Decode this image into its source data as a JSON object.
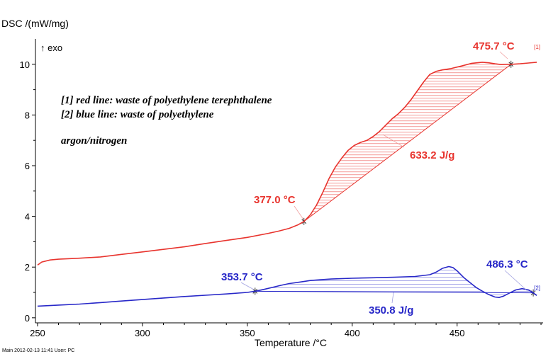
{
  "chart_data": {
    "type": "line",
    "ylabel": "DSC /(mW/mg)",
    "ylabel_note": "↑ exo",
    "xlabel": "Temperature /°C",
    "xlim": [
      249,
      491
    ],
    "ylim": [
      -0.2,
      11
    ],
    "xticks": [
      250,
      300,
      350,
      400,
      450
    ],
    "yticks": [
      0,
      2,
      4,
      6,
      8,
      10
    ],
    "grid": false,
    "legend_text": [
      "[1] red line: waste of polyethylene terephthalene",
      "[2] blue line: waste of polyethylene",
      "argon/nitrogen"
    ],
    "series": [
      {
        "tag": "[1]",
        "color": "#e8342e",
        "x": [
          250,
          252,
          256,
          260,
          270,
          280,
          290,
          300,
          310,
          320,
          330,
          340,
          350,
          360,
          365,
          370,
          374,
          377,
          380,
          383,
          386,
          389,
          392,
          395,
          398,
          401,
          404,
          407,
          410,
          413,
          416,
          419,
          422,
          425,
          428,
          431,
          434,
          437,
          440,
          443,
          447,
          452,
          457,
          462,
          465,
          468,
          471,
          474,
          476,
          480,
          484,
          488
        ],
        "values": [
          2.08,
          2.2,
          2.28,
          2.31,
          2.35,
          2.4,
          2.5,
          2.6,
          2.7,
          2.8,
          2.93,
          3.05,
          3.17,
          3.33,
          3.42,
          3.53,
          3.66,
          3.8,
          4.06,
          4.45,
          4.95,
          5.5,
          5.95,
          6.3,
          6.6,
          6.8,
          6.92,
          7.0,
          7.15,
          7.35,
          7.6,
          7.85,
          8.05,
          8.3,
          8.6,
          8.95,
          9.3,
          9.6,
          9.72,
          9.78,
          9.83,
          9.93,
          10.04,
          10.08,
          10.06,
          10.02,
          9.99,
          10.0,
          10.0,
          10.02,
          10.05,
          10.08
        ]
      },
      {
        "tag": "[2]",
        "color": "#2727c8",
        "x": [
          250,
          260,
          270,
          280,
          290,
          300,
          310,
          320,
          330,
          340,
          350,
          354,
          358,
          362,
          366,
          370,
          375,
          380,
          385,
          390,
          400,
          410,
          420,
          430,
          437,
          440,
          443,
          446,
          448,
          450,
          453,
          456,
          459,
          462,
          465,
          468,
          470,
          472,
          475,
          478,
          481,
          484,
          486,
          488
        ],
        "values": [
          0.46,
          0.5,
          0.54,
          0.6,
          0.66,
          0.72,
          0.78,
          0.84,
          0.89,
          0.94,
          1.0,
          1.05,
          1.12,
          1.2,
          1.28,
          1.35,
          1.41,
          1.47,
          1.5,
          1.53,
          1.56,
          1.58,
          1.6,
          1.63,
          1.7,
          1.8,
          1.95,
          2.02,
          1.98,
          1.85,
          1.6,
          1.4,
          1.2,
          1.05,
          0.92,
          0.82,
          0.8,
          0.85,
          0.98,
          1.1,
          1.15,
          1.1,
          1.0,
          0.88
        ]
      }
    ],
    "integrations": [
      {
        "color": "#e8342e",
        "onset": 377.0,
        "onset_label": "377.0 °C",
        "end": 475.7,
        "end_label": "475.7 °C",
        "area_label": "633.2 J/g"
      },
      {
        "color": "#2727c8",
        "onset": 353.7,
        "onset_label": "353.7 °C",
        "end": 486.3,
        "end_label": "486.3 °C",
        "area_label": "350.8 J/g"
      }
    ]
  },
  "footer": {
    "text": "Main   2012-02-13 11:41   User: PC"
  }
}
